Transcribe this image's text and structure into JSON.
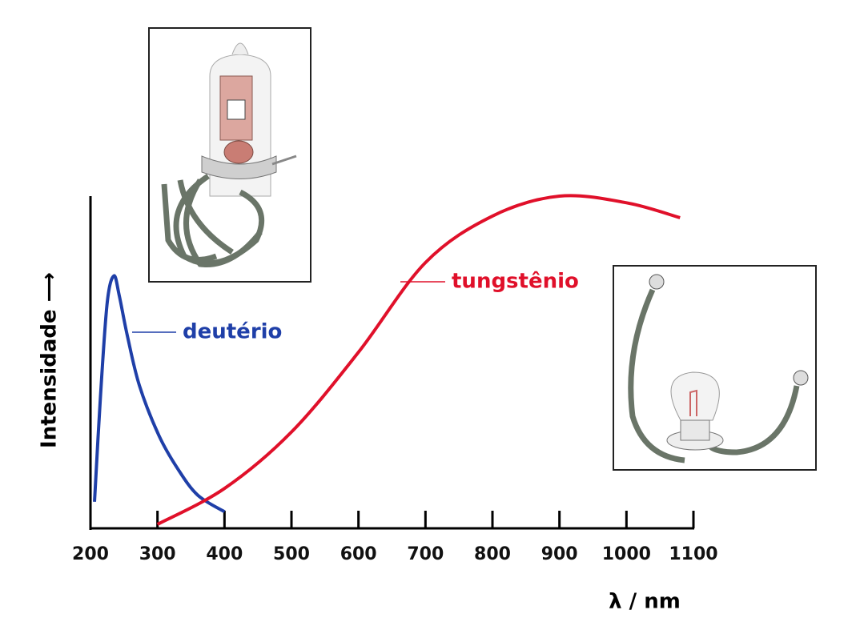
{
  "chart_data": {
    "type": "line",
    "xlabel": "λ / nm",
    "ylabel": "Intensidade ⟶",
    "xlim": [
      200,
      1100
    ],
    "ylim": [
      0,
      100
    ],
    "xticks": [
      200,
      300,
      400,
      500,
      600,
      700,
      800,
      900,
      1000,
      1100
    ],
    "series": [
      {
        "name": "deutério",
        "color": "#1f3fa8",
        "x": [
          206,
          215,
          225,
          235,
          243,
          255,
          273,
          302,
          330,
          360,
          400
        ],
        "values": [
          8,
          40,
          68,
          76,
          70,
          58,
          43,
          28,
          18,
          10,
          5
        ]
      },
      {
        "name": "tungstênio",
        "color": "#e0102a",
        "x": [
          300,
          400,
          500,
          600,
          700,
          800,
          900,
          1000,
          1080
        ],
        "values": [
          1.2,
          12,
          29,
          53,
          80,
          94,
          100,
          98,
          93.5
        ]
      }
    ]
  }
}
